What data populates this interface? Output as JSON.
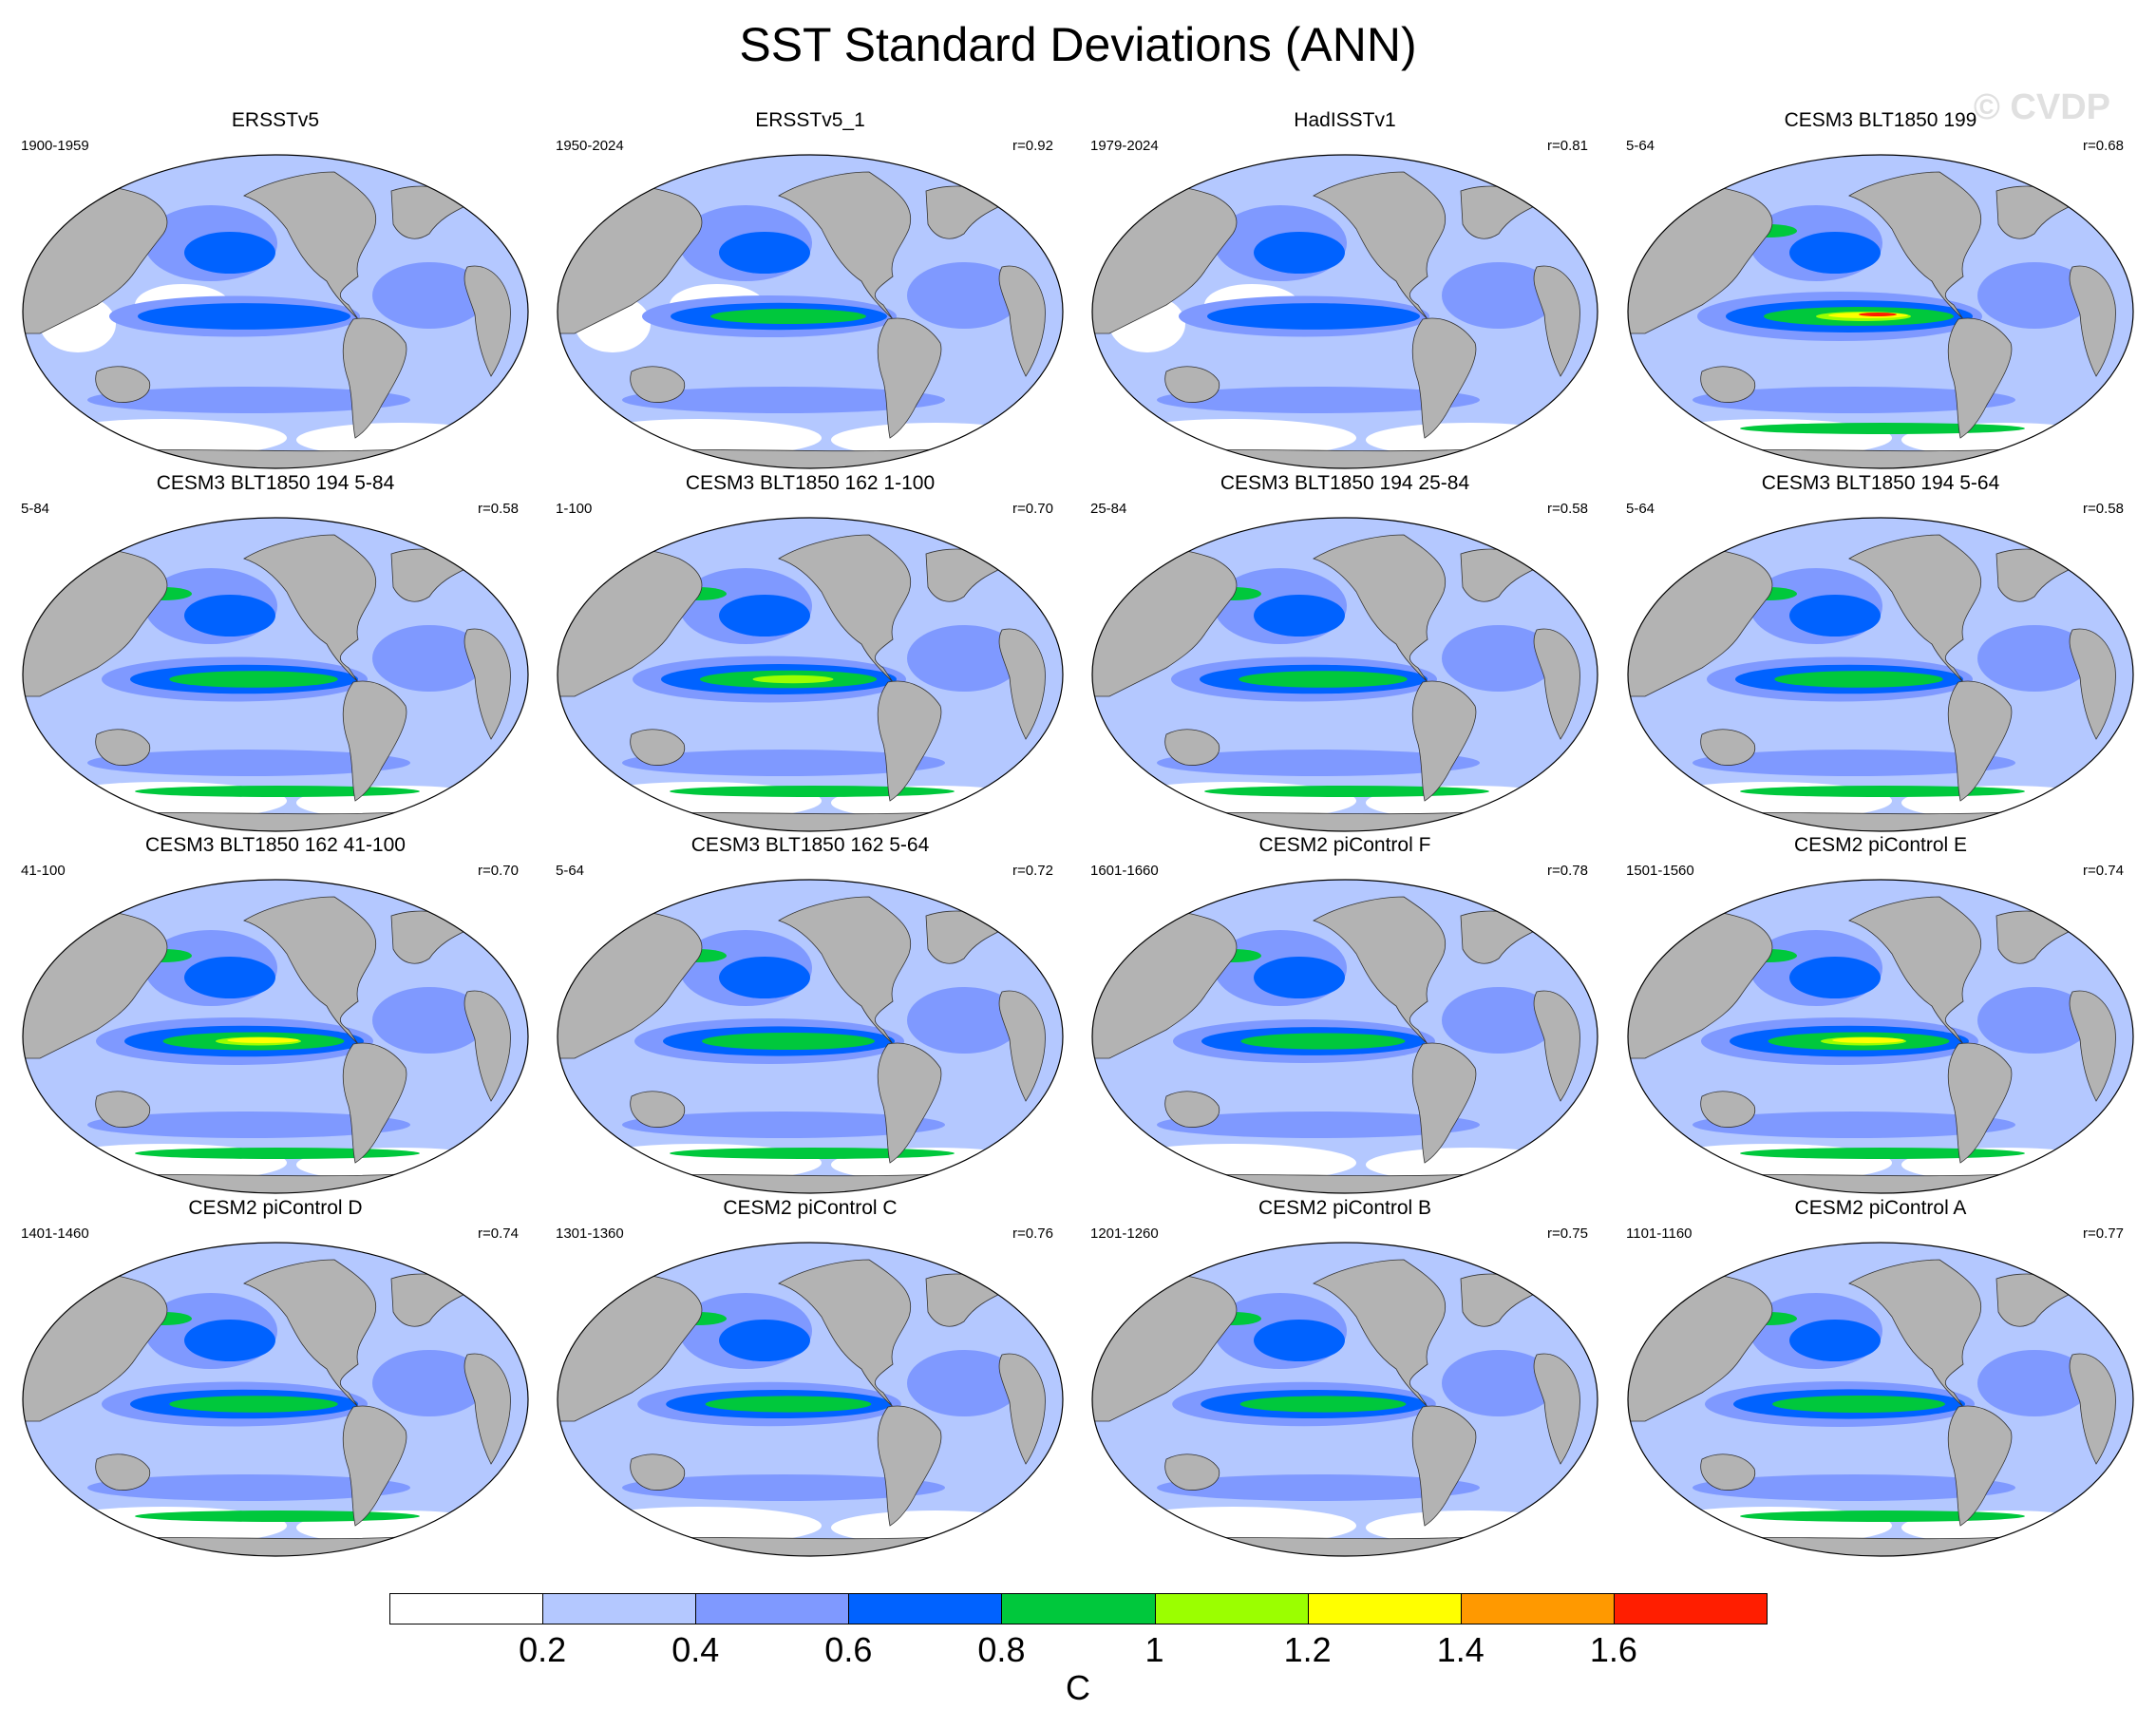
{
  "title": "SST Standard Deviations (ANN)",
  "watermark": "© CVDP",
  "unit": "C",
  "colors": {
    "land": "#b3b3b3",
    "levels": [
      "#ffffff",
      "#b4c8ff",
      "#7f99ff",
      "#0062ff",
      "#00c83c",
      "#9bff00",
      "#ffff00",
      "#ff9900",
      "#ff1e00"
    ]
  },
  "colorbar": {
    "labels": [
      "0.2",
      "0.4",
      "0.6",
      "0.8",
      "1",
      "1.2",
      "1.4",
      "1.6"
    ]
  },
  "panels": [
    {
      "title": "ERSSTv5",
      "period": "1900-1959",
      "r": "",
      "intensity": 0.55
    },
    {
      "title": "ERSSTv5_1",
      "period": "1950-2024",
      "r": "r=0.92",
      "intensity": 0.6
    },
    {
      "title": "HadISSTv1",
      "period": "1979-2024",
      "r": "r=0.81",
      "intensity": 0.55
    },
    {
      "title": "CESM3 BLT1850 199",
      "period": "5-64",
      "r": "r=0.68",
      "intensity": 1.0
    },
    {
      "title": "CESM3 BLT1850 194 5-84",
      "period": "5-84",
      "r": "r=0.58",
      "intensity": 0.75
    },
    {
      "title": "CESM3 BLT1850 162 1-100",
      "period": "1-100",
      "r": "r=0.70",
      "intensity": 0.85
    },
    {
      "title": "CESM3 BLT1850 194 25-84",
      "period": "25-84",
      "r": "r=0.58",
      "intensity": 0.75
    },
    {
      "title": "CESM3 BLT1850 194 5-64",
      "period": "5-64",
      "r": "r=0.58",
      "intensity": 0.75
    },
    {
      "title": "CESM3 BLT1850 162 41-100",
      "period": "41-100",
      "r": "r=0.70",
      "intensity": 0.9
    },
    {
      "title": "CESM3 BLT1850 162 5-64",
      "period": "5-64",
      "r": "r=0.72",
      "intensity": 0.8
    },
    {
      "title": "CESM2 piControl F",
      "period": "1601-1660",
      "r": "r=0.78",
      "intensity": 0.7
    },
    {
      "title": "CESM2 piControl E",
      "period": "1501-1560",
      "r": "r=0.74",
      "intensity": 0.9
    },
    {
      "title": "CESM2 piControl D",
      "period": "1401-1460",
      "r": "r=0.74",
      "intensity": 0.75
    },
    {
      "title": "CESM2 piControl C",
      "period": "1301-1360",
      "r": "r=0.76",
      "intensity": 0.72
    },
    {
      "title": "CESM2 piControl B",
      "period": "1201-1260",
      "r": "r=0.75",
      "intensity": 0.72
    },
    {
      "title": "CESM2 piControl A",
      "period": "1101-1160",
      "r": "r=0.77",
      "intensity": 0.8
    }
  ]
}
